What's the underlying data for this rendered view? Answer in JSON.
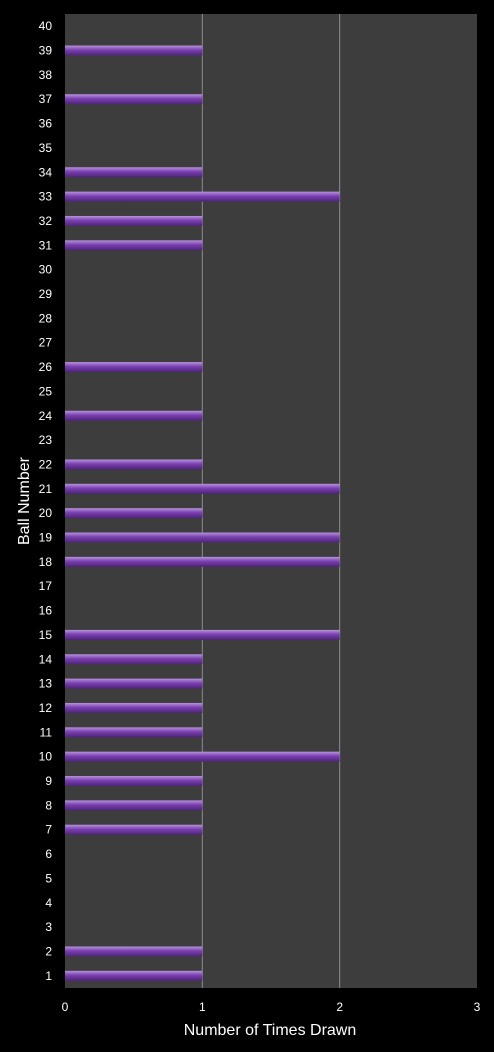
{
  "colors": {
    "background": "#000000",
    "plot_area": "#3d3d3d",
    "gridline": "#8c8c8c",
    "bar": "#7a3fb0",
    "bar_highlight": "#b793dc",
    "bar_shadow": "#4e2478",
    "text": "#ffffff"
  },
  "chart_data": {
    "type": "bar",
    "orientation": "horizontal",
    "title": "",
    "xlabel": "Number of Times Drawn",
    "ylabel": "Ball Number",
    "xlim": [
      0,
      3
    ],
    "xticks": [
      "0",
      "1",
      "2",
      "3"
    ],
    "grid": "vertical",
    "legend": "none",
    "categories": [
      "1",
      "2",
      "3",
      "4",
      "5",
      "6",
      "7",
      "8",
      "9",
      "10",
      "11",
      "12",
      "13",
      "14",
      "15",
      "16",
      "17",
      "18",
      "19",
      "20",
      "21",
      "22",
      "23",
      "24",
      "25",
      "26",
      "27",
      "28",
      "29",
      "30",
      "31",
      "32",
      "33",
      "34",
      "35",
      "36",
      "37",
      "38",
      "39",
      "40"
    ],
    "values": [
      1,
      1,
      0,
      0,
      0,
      0,
      1,
      1,
      1,
      2,
      1,
      1,
      1,
      1,
      2,
      0,
      0,
      2,
      2,
      1,
      2,
      1,
      0,
      1,
      0,
      1,
      0,
      0,
      0,
      0,
      1,
      1,
      2,
      1,
      0,
      0,
      1,
      0,
      1,
      0
    ]
  }
}
